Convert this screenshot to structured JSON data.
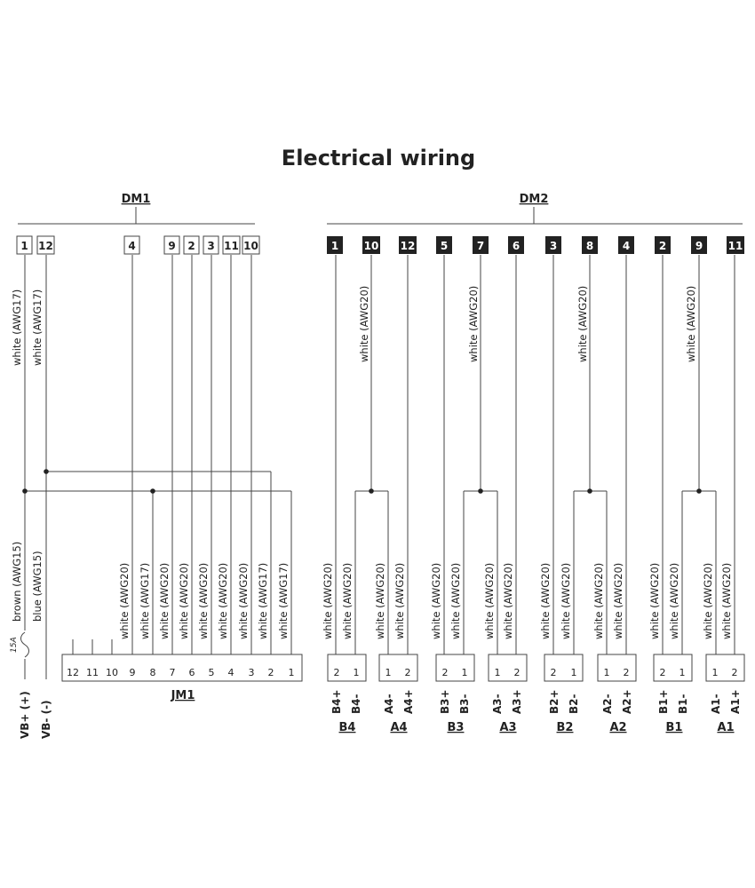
{
  "title": "Electrical wiring",
  "dm1": {
    "label": "DM1",
    "pins": [
      "1",
      "12",
      "4",
      "9",
      "2",
      "3",
      "11",
      "10"
    ]
  },
  "dm2": {
    "label": "DM2",
    "pins": [
      "1",
      "10",
      "12",
      "5",
      "7",
      "6",
      "3",
      "8",
      "4",
      "2",
      "9",
      "11"
    ]
  },
  "upper_wire_labels": {
    "dm1_pin1": "white (AWG17)",
    "dm1_pin12": "white (AWG17)",
    "dm2_10": "white (AWG20)",
    "dm2_7": "white (AWG20)",
    "dm2_8": "white (AWG20)",
    "dm2_9": "white (AWG20)"
  },
  "power": {
    "vbplus_wire": "brown (AWG15)",
    "vbminus_wire": "blue (AWG15)",
    "fuse": "15A",
    "vbplus": "VB+ (+)",
    "vbminus": "VB- (-)"
  },
  "jm1": {
    "label": "JM1",
    "pins": [
      "12",
      "11",
      "10",
      "9",
      "8",
      "7",
      "6",
      "5",
      "4",
      "3",
      "2",
      "1"
    ],
    "wire_labels": [
      "white (AWG20)",
      "white (AWG17)",
      "white (AWG20)",
      "white (AWG20)",
      "white (AWG20)",
      "white (AWG20)",
      "white (AWG20)",
      "white (AWG17)",
      "white (AWG17)"
    ]
  },
  "connectors": [
    {
      "label": "B4",
      "pins": [
        "2",
        "1"
      ],
      "signals": [
        "B4+",
        "B4-"
      ],
      "wires": [
        "white (AWG20)",
        "white (AWG20)"
      ]
    },
    {
      "label": "A4",
      "pins": [
        "1",
        "2"
      ],
      "signals": [
        "A4-",
        "A4+"
      ],
      "wires": [
        "white (AWG20)",
        "white (AWG20)"
      ]
    },
    {
      "label": "B3",
      "pins": [
        "2",
        "1"
      ],
      "signals": [
        "B3+",
        "B3-"
      ],
      "wires": [
        "white (AWG20)",
        "white (AWG20)"
      ]
    },
    {
      "label": "A3",
      "pins": [
        "1",
        "2"
      ],
      "signals": [
        "A3-",
        "A3+"
      ],
      "wires": [
        "white (AWG20)",
        "white (AWG20)"
      ]
    },
    {
      "label": "B2",
      "pins": [
        "2",
        "1"
      ],
      "signals": [
        "B2+",
        "B2-"
      ],
      "wires": [
        "white (AWG20)",
        "white (AWG20)"
      ]
    },
    {
      "label": "A2",
      "pins": [
        "1",
        "2"
      ],
      "signals": [
        "A2-",
        "A2+"
      ],
      "wires": [
        "white (AWG20)",
        "white (AWG20)"
      ]
    },
    {
      "label": "B1",
      "pins": [
        "2",
        "1"
      ],
      "signals": [
        "B1+",
        "B1-"
      ],
      "wires": [
        "white (AWG20)",
        "white (AWG20)"
      ]
    },
    {
      "label": "A1",
      "pins": [
        "1",
        "2"
      ],
      "signals": [
        "A1-",
        "A1+"
      ],
      "wires": [
        "white (AWG20)",
        "white (AWG20)"
      ]
    }
  ]
}
